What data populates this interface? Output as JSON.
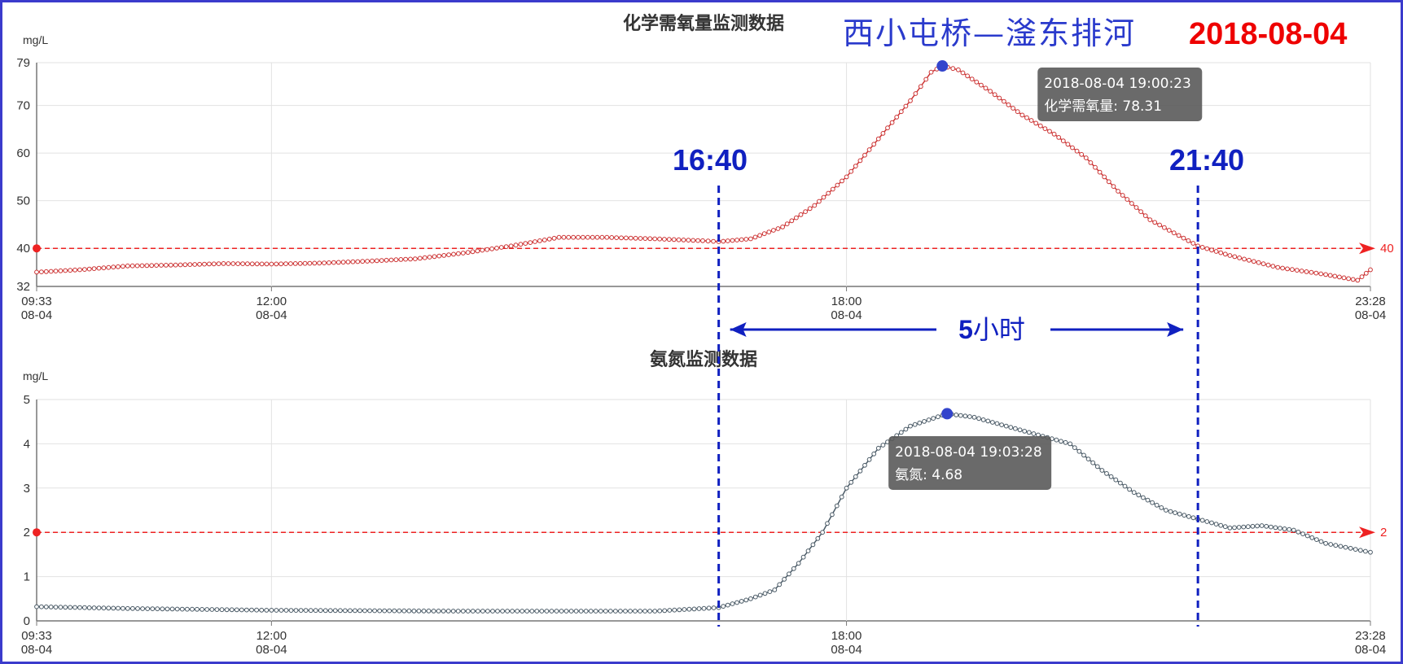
{
  "header": {
    "station": "西小屯桥—滏东排河",
    "date": "2018-08-04"
  },
  "annotations": {
    "start_time": "16:40",
    "end_time": "21:40",
    "duration_num": "5",
    "duration_unit": "小时"
  },
  "colors": {
    "cod_line": "#cc3333",
    "nh3_line": "#4a5a66",
    "threshold": "#ee2222",
    "highlight": "#3344cc",
    "annotation": "#1020c0",
    "frame": "#3b3bcc"
  },
  "chart_data": [
    {
      "type": "line",
      "title": "化学需氧量监测数据",
      "ylabel": "mg/L",
      "ylim": [
        32,
        79
      ],
      "y_ticks": [
        "32",
        "40",
        "50",
        "60",
        "70",
        "79"
      ],
      "x_ticks": [
        {
          "time": "09:33",
          "date": "08-04"
        },
        {
          "time": "12:00",
          "date": "08-04"
        },
        {
          "time": "18:00",
          "date": "08-04"
        },
        {
          "time": "23:28",
          "date": "08-04"
        }
      ],
      "x_start": "09:33",
      "x_end": "23:28",
      "threshold": 40,
      "threshold_label": "40",
      "series": [
        {
          "name": "化学需氧量",
          "points": [
            [
              "09:33",
              35.0
            ],
            [
              "10:00",
              35.5
            ],
            [
              "10:30",
              36.3
            ],
            [
              "11:00",
              36.5
            ],
            [
              "11:30",
              36.8
            ],
            [
              "12:00",
              36.7
            ],
            [
              "12:30",
              36.9
            ],
            [
              "13:00",
              37.3
            ],
            [
              "13:30",
              37.8
            ],
            [
              "14:00",
              39.0
            ],
            [
              "14:30",
              40.5
            ],
            [
              "15:00",
              42.3
            ],
            [
              "15:30",
              42.3
            ],
            [
              "16:00",
              42.0
            ],
            [
              "16:30",
              41.6
            ],
            [
              "16:40",
              41.4
            ],
            [
              "17:00",
              42.0
            ],
            [
              "17:20",
              44.5
            ],
            [
              "17:40",
              49.0
            ],
            [
              "18:00",
              55.0
            ],
            [
              "18:20",
              63.0
            ],
            [
              "18:40",
              71.0
            ],
            [
              "18:53",
              77.0
            ],
            [
              "19:00",
              78.31
            ],
            [
              "19:10",
              77.5
            ],
            [
              "19:30",
              73.0
            ],
            [
              "19:50",
              68.0
            ],
            [
              "20:10",
              64.0
            ],
            [
              "20:30",
              59.0
            ],
            [
              "20:50",
              52.0
            ],
            [
              "21:10",
              46.0
            ],
            [
              "21:40",
              40.5
            ],
            [
              "22:00",
              38.5
            ],
            [
              "22:30",
              36.0
            ],
            [
              "23:00",
              34.5
            ],
            [
              "23:20",
              33.3
            ],
            [
              "23:28",
              35.5
            ]
          ]
        }
      ],
      "tooltip": {
        "time": "2018-08-04 19:00:23",
        "label": "化学需氧量:",
        "value": "78.31",
        "x": "19:00",
        "y": 78.31
      }
    },
    {
      "type": "line",
      "title": "氨氮监测数据",
      "ylabel": "mg/L",
      "ylim": [
        0,
        5
      ],
      "y_ticks": [
        "0",
        "1",
        "2",
        "3",
        "4",
        "5"
      ],
      "x_ticks": [
        {
          "time": "09:33",
          "date": "08-04"
        },
        {
          "time": "12:00",
          "date": "08-04"
        },
        {
          "time": "18:00",
          "date": "08-04"
        },
        {
          "time": "23:28",
          "date": "08-04"
        }
      ],
      "x_start": "09:33",
      "x_end": "23:28",
      "threshold": 2,
      "threshold_label": "2",
      "series": [
        {
          "name": "氨氮",
          "points": [
            [
              "09:33",
              0.32
            ],
            [
              "10:30",
              0.28
            ],
            [
              "12:00",
              0.24
            ],
            [
              "14:00",
              0.22
            ],
            [
              "16:00",
              0.22
            ],
            [
              "16:40",
              0.3
            ],
            [
              "17:00",
              0.5
            ],
            [
              "17:15",
              0.7
            ],
            [
              "17:30",
              1.3
            ],
            [
              "17:45",
              2.0
            ],
            [
              "18:00",
              3.0
            ],
            [
              "18:20",
              3.9
            ],
            [
              "18:40",
              4.4
            ],
            [
              "19:03",
              4.68
            ],
            [
              "19:20",
              4.6
            ],
            [
              "19:40",
              4.4
            ],
            [
              "20:00",
              4.2
            ],
            [
              "20:20",
              4.0
            ],
            [
              "20:40",
              3.4
            ],
            [
              "21:00",
              2.9
            ],
            [
              "21:20",
              2.5
            ],
            [
              "21:40",
              2.3
            ],
            [
              "22:00",
              2.1
            ],
            [
              "22:20",
              2.15
            ],
            [
              "22:40",
              2.05
            ],
            [
              "23:00",
              1.75
            ],
            [
              "23:28",
              1.55
            ]
          ]
        }
      ],
      "tooltip": {
        "time": "2018-08-04 19:03:28",
        "label": "氨氮:",
        "value": "4.68",
        "x": "19:03",
        "y": 4.68
      }
    }
  ]
}
